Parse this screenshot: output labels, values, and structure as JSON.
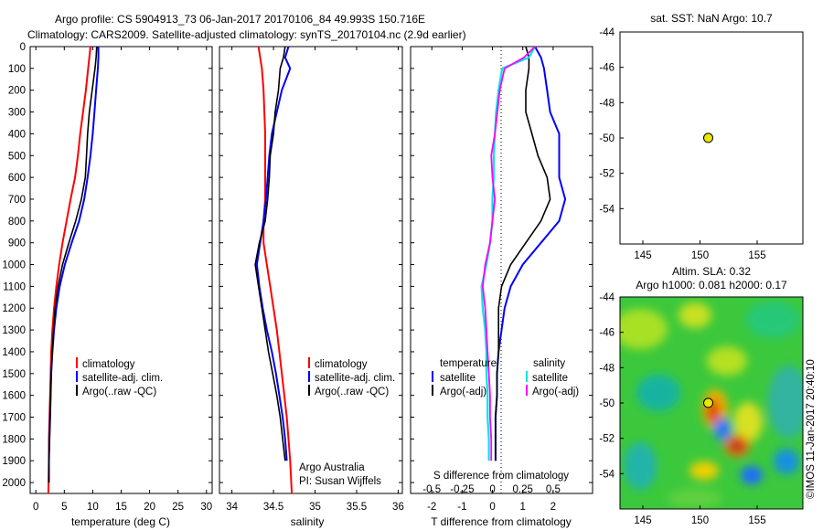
{
  "title": {
    "line1": "Argo profile: CS 5904913_73 06-Jan-2017 20170106_84 49.993S 150.716E",
    "line2": "Climatology: CARS2009. Satellite-adjusted climatology: synTS_20170104.nc (2.9d earlier)"
  },
  "colors": {
    "climatology": "#ff0000",
    "satellite": "#0000ff",
    "argo": "#000000",
    "salinity_satellite": "#00e5e5",
    "salinity_argo": "#ff00ff",
    "marker": "#e8e800"
  },
  "temperature_panel": {
    "xlabel": "temperature (deg C)",
    "legend": [
      "climatology",
      "satellite-adj. clim.",
      "Argo(..raw -QC)"
    ]
  },
  "salinity_panel": {
    "xlabel": "salinity",
    "legend": [
      "climatology",
      "satellite-adj. clim.",
      "Argo(..raw -QC)"
    ],
    "note1": "Argo Australia",
    "note2": "PI: Susan Wijffels"
  },
  "difference_panel": {
    "xlabel": "T difference from climatology",
    "top_label": "S difference from climatology",
    "legend_temp_header": "temperature",
    "legend_sal_header": "salinity",
    "legend_items": [
      "satellite",
      "Argo(-adj)"
    ]
  },
  "sst_panel": {
    "title": "sat. SST: NaN Argo: 10.7"
  },
  "sla_panel": {
    "title1": "Altim. SLA: 0.32",
    "title2": "Argo h1000: 0.081 h2000: 0.17",
    "credit": "©IMOS 11-Jan-2017 20:40:10"
  },
  "chart_data": [
    {
      "type": "line",
      "name": "temperature",
      "xlabel": "temperature (deg C)",
      "xlim": [
        -1,
        31
      ],
      "ylim": [
        2050,
        0
      ],
      "xticks": [
        0,
        5,
        10,
        15,
        20,
        25,
        30
      ],
      "yticks": [
        0,
        100,
        200,
        300,
        400,
        500,
        600,
        700,
        800,
        900,
        1000,
        1100,
        1200,
        1300,
        1400,
        1500,
        1600,
        1700,
        1800,
        1900,
        2000
      ],
      "series": [
        {
          "name": "climatology",
          "color": "#ff0000",
          "x": [
            9.6,
            9.4,
            9.2,
            8.8,
            8.3,
            7.8,
            7.4,
            6.9,
            6.1,
            5.4,
            4.7,
            4.1,
            3.6,
            3.2,
            2.9,
            2.7,
            2.6,
            2.5,
            2.4,
            2.3,
            2.3,
            2.2
          ],
          "y": [
            0,
            50,
            100,
            200,
            300,
            400,
            500,
            600,
            700,
            800,
            900,
            1000,
            1100,
            1200,
            1300,
            1400,
            1500,
            1600,
            1700,
            1800,
            1900,
            2050
          ]
        },
        {
          "name": "satellite-adj. clim.",
          "color": "#0000ff",
          "x": [
            11.0,
            11.0,
            10.9,
            10.6,
            10.3,
            10.0,
            9.6,
            9.1,
            8.5,
            7.6,
            6.3,
            5.1,
            4.2,
            3.6,
            3.2,
            2.9,
            2.7,
            2.6,
            2.5,
            2.4,
            2.3,
            2.3
          ],
          "y": [
            0,
            50,
            100,
            200,
            300,
            400,
            500,
            600,
            700,
            800,
            900,
            1000,
            1100,
            1200,
            1300,
            1400,
            1500,
            1600,
            1700,
            1800,
            1900,
            2000
          ]
        },
        {
          "name": "Argo(..raw -QC)",
          "color": "#000000",
          "x": [
            10.7,
            10.6,
            10.4,
            9.9,
            9.4,
            9.1,
            8.9,
            8.7,
            8.0,
            7.0,
            5.8,
            4.7,
            3.9,
            3.4,
            3.1,
            2.9,
            2.7,
            2.6,
            2.5,
            2.4,
            2.3,
            2.3
          ],
          "y": [
            0,
            50,
            100,
            200,
            300,
            400,
            500,
            600,
            700,
            800,
            900,
            1000,
            1100,
            1200,
            1300,
            1400,
            1500,
            1600,
            1700,
            1800,
            1900,
            2000
          ]
        }
      ]
    },
    {
      "type": "line",
      "name": "salinity",
      "xlabel": "salinity",
      "xlim": [
        33.85,
        36.05
      ],
      "ylim": [
        2050,
        0
      ],
      "xticks": [
        34,
        34.5,
        35,
        35.5,
        36
      ],
      "series": [
        {
          "name": "climatology",
          "color": "#ff0000",
          "x": [
            34.32,
            34.34,
            34.36,
            34.38,
            34.39,
            34.4,
            34.4,
            34.4,
            34.4,
            34.38,
            34.38,
            34.42,
            34.46,
            34.5,
            34.54,
            34.57,
            34.6,
            34.63,
            34.66,
            34.68,
            34.7,
            34.72
          ],
          "y": [
            0,
            50,
            100,
            200,
            300,
            400,
            500,
            600,
            700,
            800,
            900,
            1000,
            1100,
            1200,
            1300,
            1400,
            1500,
            1600,
            1700,
            1800,
            1900,
            2050
          ]
        },
        {
          "name": "satellite-adj. clim.",
          "color": "#0000ff",
          "x": [
            34.68,
            34.64,
            34.7,
            34.6,
            34.54,
            34.48,
            34.45,
            34.43,
            34.41,
            34.38,
            34.34,
            34.3,
            34.33,
            34.37,
            34.42,
            34.48,
            34.53,
            34.57,
            34.61,
            34.64,
            34.66
          ],
          "y": [
            0,
            50,
            100,
            200,
            300,
            400,
            500,
            600,
            700,
            800,
            900,
            1000,
            1100,
            1200,
            1300,
            1400,
            1500,
            1600,
            1700,
            1800,
            1900
          ]
        },
        {
          "name": "Argo(..raw -QC)",
          "color": "#000000",
          "x": [
            34.64,
            34.62,
            34.58,
            34.56,
            34.52,
            34.5,
            34.46,
            34.45,
            34.43,
            34.4,
            34.33,
            34.28,
            34.32,
            34.36,
            34.4,
            34.44,
            34.49,
            34.54,
            34.58,
            34.61,
            34.64
          ],
          "y": [
            0,
            50,
            100,
            200,
            300,
            400,
            500,
            600,
            700,
            800,
            900,
            1000,
            1100,
            1200,
            1300,
            1400,
            1500,
            1600,
            1700,
            1800,
            1900
          ]
        }
      ]
    },
    {
      "type": "line",
      "name": "difference",
      "xlabel": "T difference from climatology",
      "top_label": "S difference from climatology",
      "xlim": [
        -2.7,
        3.3
      ],
      "ylim": [
        2050,
        0
      ],
      "xticks": [
        -2,
        -1,
        0,
        1,
        2
      ],
      "xticks_salinity": [
        -0.5,
        -0.25,
        0,
        0.25,
        0.5
      ],
      "salinity_scale": 4,
      "series": [
        {
          "name": "temperature satellite",
          "color": "#0000ff",
          "quantity": "T",
          "x": [
            1.4,
            1.6,
            1.7,
            1.8,
            1.9,
            2.2,
            2.2,
            2.2,
            2.4,
            2.2,
            1.6,
            1.0,
            0.6,
            0.4,
            0.3,
            0.2,
            0.15,
            0.15,
            0.1,
            0.1,
            0.1
          ],
          "y": [
            0,
            50,
            100,
            200,
            300,
            400,
            500,
            600,
            700,
            800,
            900,
            1000,
            1100,
            1200,
            1300,
            1400,
            1500,
            1600,
            1700,
            1800,
            1900
          ]
        },
        {
          "name": "temperature Argo(-adj)",
          "color": "#000000",
          "x": [
            1.1,
            1.2,
            1.2,
            1.1,
            1.1,
            1.3,
            1.5,
            1.8,
            1.9,
            1.6,
            1.1,
            0.6,
            0.3,
            0.2,
            0.2,
            0.2,
            0.15,
            0.15,
            0.1,
            0.1,
            0.1
          ],
          "y": [
            0,
            50,
            100,
            200,
            300,
            400,
            500,
            600,
            700,
            800,
            900,
            1000,
            1100,
            1200,
            1300,
            1400,
            1500,
            1600,
            1700,
            1800,
            1900
          ]
        },
        {
          "name": "salinity satellite",
          "color": "#00e5e5",
          "quantity": "S",
          "x": [
            0.35,
            0.3,
            0.08,
            0.05,
            0.03,
            0.02,
            0.01,
            0.01,
            0.0,
            0.0,
            -0.02,
            -0.05,
            -0.09,
            -0.08,
            -0.06,
            -0.05,
            -0.05,
            -0.04,
            -0.04,
            -0.03,
            -0.03
          ],
          "y": [
            0,
            50,
            100,
            200,
            300,
            400,
            500,
            600,
            700,
            800,
            900,
            1000,
            1100,
            1200,
            1300,
            1400,
            1500,
            1600,
            1700,
            1800,
            1900
          ]
        },
        {
          "name": "salinity Argo(-adj)",
          "color": "#ff00ff",
          "x": [
            0.35,
            0.26,
            0.1,
            0.06,
            0.04,
            0.02,
            -0.01,
            0.0,
            0.02,
            0.0,
            -0.02,
            -0.06,
            -0.08,
            -0.06,
            -0.05,
            -0.04,
            -0.03,
            -0.02,
            -0.02,
            -0.01,
            -0.01
          ],
          "y": [
            0,
            50,
            100,
            200,
            300,
            400,
            500,
            600,
            700,
            800,
            900,
            1000,
            1100,
            1200,
            1300,
            1400,
            1500,
            1600,
            1700,
            1800,
            1900
          ]
        }
      ]
    },
    {
      "type": "scatter",
      "name": "sst_map",
      "title": "sat. SST: NaN Argo: 10.7",
      "xlim": [
        143,
        159
      ],
      "ylim": [
        -56,
        -44
      ],
      "xticks": [
        145,
        150,
        155
      ],
      "yticks": [
        -44,
        -46,
        -48,
        -50,
        -52,
        -54
      ],
      "points": [
        {
          "x": 150.716,
          "y": -49.993
        }
      ]
    },
    {
      "type": "heatmap",
      "name": "sla_map",
      "title": "Altim. SLA: 0.32",
      "xlim": [
        143,
        159
      ],
      "ylim": [
        -56,
        -44
      ],
      "xticks": [
        145,
        150,
        155
      ],
      "yticks": [
        -44,
        -46,
        -48,
        -50,
        -52,
        -54
      ],
      "points": [
        {
          "x": 150.716,
          "y": -49.993
        }
      ]
    }
  ]
}
